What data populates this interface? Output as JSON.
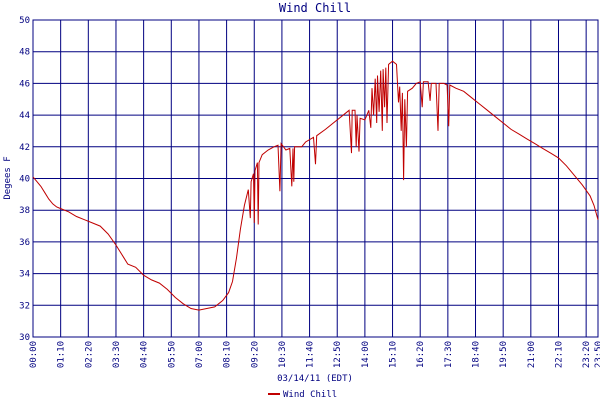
{
  "chart_data": {
    "type": "line",
    "title": "Wind Chill",
    "y_label": "Degees F",
    "x_label": "03/14/11 (EDT)",
    "x": [
      0,
      10,
      20,
      30,
      40,
      50,
      60,
      70,
      90,
      110,
      130,
      150,
      170,
      190,
      210,
      230,
      240,
      260,
      280,
      300,
      320,
      340,
      360,
      380,
      400,
      420,
      440,
      460,
      480,
      495,
      505,
      515,
      525,
      535,
      545,
      550,
      552,
      558,
      560,
      562,
      568,
      570,
      572,
      580,
      595,
      610,
      620,
      625,
      628,
      640,
      650,
      655,
      658,
      660,
      662,
      680,
      690,
      710,
      715,
      718,
      740,
      760,
      780,
      800,
      806,
      808,
      815,
      818,
      820,
      825,
      828,
      840,
      850,
      855,
      858,
      862,
      866,
      870,
      872,
      876,
      880,
      884,
      886,
      890,
      893,
      896,
      900,
      910,
      920,
      925,
      928,
      932,
      935,
      938,
      941,
      945,
      948,
      960,
      970,
      980,
      985,
      988,
      1000,
      1005,
      1008,
      1020,
      1025,
      1028,
      1040,
      1048,
      1052,
      1055,
      1070,
      1090,
      1110,
      1130,
      1150,
      1170,
      1190,
      1210,
      1230,
      1250,
      1270,
      1290,
      1310,
      1330,
      1350,
      1370,
      1390,
      1410,
      1420,
      1430
    ],
    "series": [
      {
        "name": "Wind Chill",
        "color": "#c00000",
        "values": [
          40.1,
          39.8,
          39.5,
          39.1,
          38.7,
          38.4,
          38.2,
          38.1,
          37.9,
          37.6,
          37.4,
          37.2,
          37.0,
          36.5,
          35.8,
          35.0,
          34.6,
          34.4,
          33.9,
          33.6,
          33.4,
          33.0,
          32.5,
          32.1,
          31.8,
          31.7,
          31.8,
          31.9,
          32.3,
          32.8,
          33.5,
          35.0,
          36.8,
          38.3,
          39.3,
          37.5,
          39.8,
          40.3,
          37.2,
          40.5,
          41.0,
          37.1,
          41.0,
          41.5,
          41.8,
          42.0,
          42.1,
          39.2,
          42.2,
          41.8,
          41.9,
          39.5,
          41.9,
          39.8,
          42.0,
          42.0,
          42.3,
          42.6,
          40.9,
          42.7,
          43.1,
          43.5,
          43.9,
          44.3,
          41.6,
          44.3,
          44.3,
          42.0,
          44.0,
          41.7,
          43.8,
          43.7,
          44.3,
          43.2,
          45.7,
          44.0,
          46.3,
          43.5,
          46.5,
          44.2,
          46.8,
          43.0,
          46.9,
          44.5,
          47.0,
          43.5,
          47.2,
          47.4,
          47.2,
          44.8,
          45.8,
          43.0,
          45.4,
          39.9,
          45.0,
          42.0,
          45.5,
          45.7,
          46.0,
          46.1,
          44.5,
          46.1,
          46.1,
          44.9,
          46.0,
          46.0,
          43.0,
          46.0,
          46.0,
          45.9,
          43.3,
          45.9,
          45.7,
          45.5,
          45.1,
          44.7,
          44.3,
          43.9,
          43.5,
          43.1,
          42.8,
          42.5,
          42.2,
          41.9,
          41.6,
          41.3,
          40.8,
          40.2,
          39.6,
          38.9,
          38.3,
          37.4
        ]
      }
    ],
    "xlim": [
      0,
      1430
    ],
    "xticks": [
      {
        "value": 0,
        "label": "00:00"
      },
      {
        "value": 70,
        "label": "01:10"
      },
      {
        "value": 140,
        "label": "02:20"
      },
      {
        "value": 210,
        "label": "03:30"
      },
      {
        "value": 280,
        "label": "04:40"
      },
      {
        "value": 350,
        "label": "05:50"
      },
      {
        "value": 420,
        "label": "07:00"
      },
      {
        "value": 490,
        "label": "08:10"
      },
      {
        "value": 560,
        "label": "09:20"
      },
      {
        "value": 630,
        "label": "10:30"
      },
      {
        "value": 700,
        "label": "11:40"
      },
      {
        "value": 770,
        "label": "12:50"
      },
      {
        "value": 840,
        "label": "14:00"
      },
      {
        "value": 910,
        "label": "15:10"
      },
      {
        "value": 980,
        "label": "16:20"
      },
      {
        "value": 1050,
        "label": "17:30"
      },
      {
        "value": 1120,
        "label": "18:40"
      },
      {
        "value": 1190,
        "label": "19:50"
      },
      {
        "value": 1260,
        "label": "21:00"
      },
      {
        "value": 1330,
        "label": "22:10"
      },
      {
        "value": 1400,
        "label": "23:20"
      },
      {
        "value": 1430,
        "label": "23:50"
      }
    ],
    "ylim": [
      30,
      50
    ],
    "yticks": [
      30,
      32,
      34,
      36,
      38,
      40,
      42,
      44,
      46,
      48,
      50
    ],
    "grid": true,
    "grid_color": "#000080"
  }
}
